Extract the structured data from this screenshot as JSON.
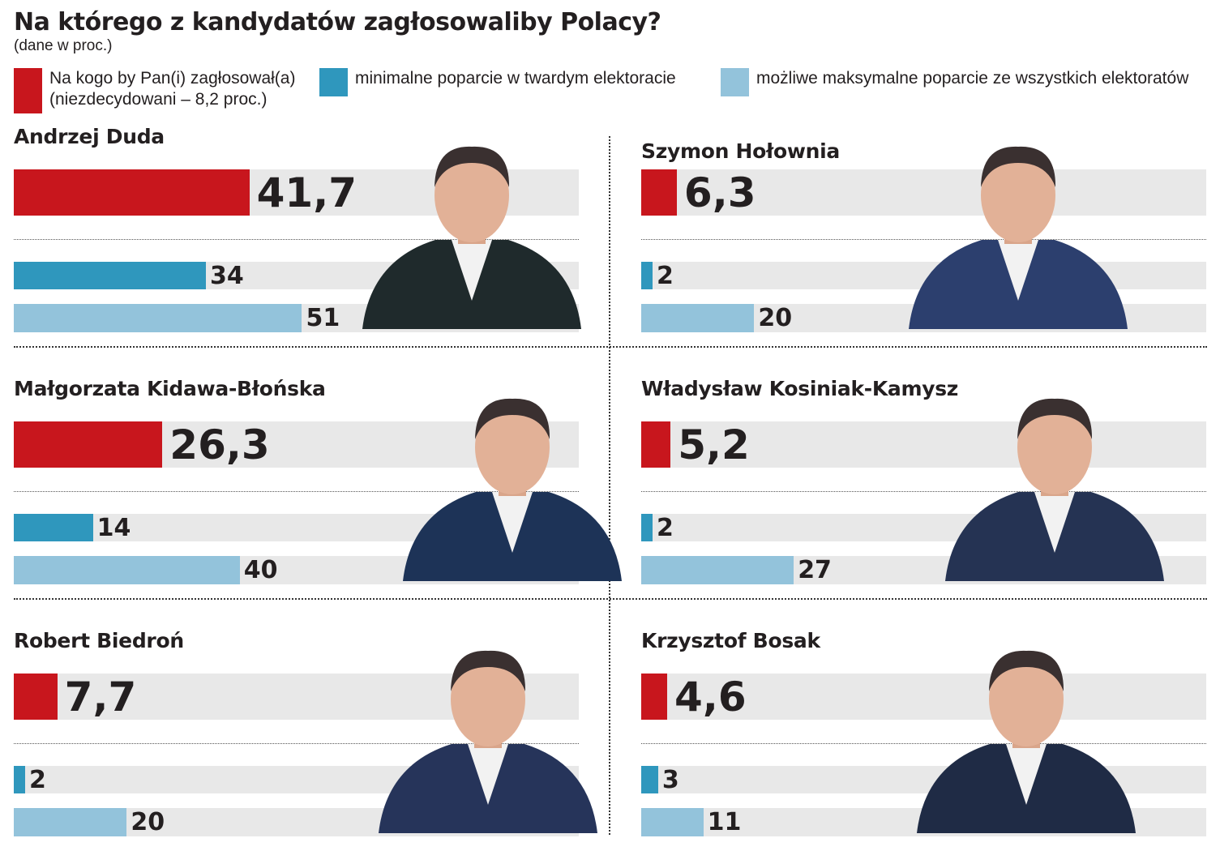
{
  "chart_data": {
    "type": "bar",
    "title": "Na którego z kandydatów zagłosowaliby Polacy?",
    "subtitle": "(dane w proc.)",
    "xlim": [
      0,
      100
    ],
    "legend": [
      {
        "label_line1": "Na kogo by Pan(i) zagłosował(a)",
        "label_line2": "(niezdecydowani – 8,2 proc.)",
        "color": "#c8161d"
      },
      {
        "label_line1": "minimalne poparcie w twardym elektoracie",
        "color": "#2f97bd"
      },
      {
        "label_line1": "możliwe maksymalne poparcie ze wszystkich elektoratów",
        "color": "#93c3db"
      }
    ],
    "candidates": [
      {
        "name": "Andrzej Duda",
        "vote": 41.7,
        "vote_label": "41,7",
        "min": 34,
        "min_label": "34",
        "max": 51,
        "max_label": "51",
        "suit": "#1f2a2c"
      },
      {
        "name": "Szymon Hołownia",
        "vote": 6.3,
        "vote_label": "6,3",
        "min": 2,
        "min_label": "2",
        "max": 20,
        "max_label": "20",
        "suit": "#2c3f6e"
      },
      {
        "name": "Małgorzata Kidawa-Błońska",
        "vote": 26.3,
        "vote_label": "26,3",
        "min": 14,
        "min_label": "14",
        "max": 40,
        "max_label": "40",
        "suit": "#1d3357"
      },
      {
        "name": "Władysław Kosiniak-Kamysz",
        "vote": 5.2,
        "vote_label": "5,2",
        "min": 2,
        "min_label": "2",
        "max": 27,
        "max_label": "27",
        "suit": "#253353"
      },
      {
        "name": "Robert Biedroń",
        "vote": 7.7,
        "vote_label": "7,7",
        "min": 2,
        "min_label": "2",
        "max": 20,
        "max_label": "20",
        "suit": "#26345a"
      },
      {
        "name": "Krzysztof Bosak",
        "vote": 4.6,
        "vote_label": "4,6",
        "min": 3,
        "min_label": "3",
        "max": 11,
        "max_label": "11",
        "suit": "#1f2b45"
      }
    ]
  }
}
